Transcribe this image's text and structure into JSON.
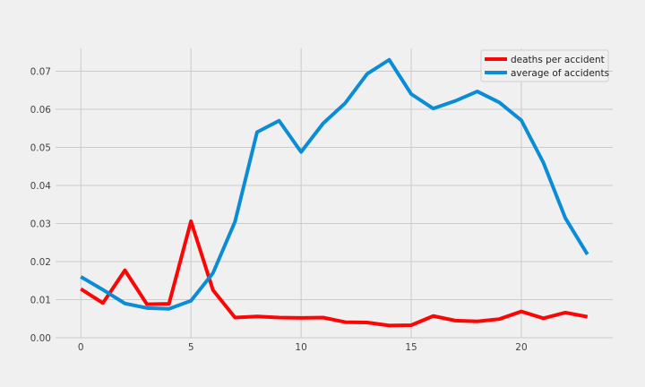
{
  "chart_data": {
    "type": "line",
    "title": "",
    "xlabel": "",
    "ylabel": "",
    "x": [
      0,
      1,
      2,
      3,
      4,
      5,
      6,
      7,
      8,
      9,
      10,
      11,
      12,
      13,
      14,
      15,
      16,
      17,
      18,
      19,
      20,
      21,
      22,
      23
    ],
    "xlim": [
      -1.15,
      24.15
    ],
    "ylim": [
      0.0,
      0.076
    ],
    "xticks": [
      0,
      5,
      10,
      15,
      20
    ],
    "xtick_labels": [
      "0",
      "5",
      "10",
      "15",
      "20"
    ],
    "yticks": [
      0.0,
      0.01,
      0.02,
      0.03,
      0.04,
      0.05,
      0.06,
      0.07
    ],
    "ytick_labels": [
      "0.00",
      "0.01",
      "0.02",
      "0.03",
      "0.04",
      "0.05",
      "0.06",
      "0.07"
    ],
    "grid": true,
    "legend_position": "top-right",
    "series": [
      {
        "name": "deaths per accident",
        "color": "#fc0505",
        "values": [
          0.0128,
          0.0091,
          0.0177,
          0.0088,
          0.0089,
          0.0306,
          0.0125,
          0.0053,
          0.0056,
          0.0053,
          0.0052,
          0.0053,
          0.0041,
          0.004,
          0.0032,
          0.0033,
          0.0057,
          0.0045,
          0.0043,
          0.0049,
          0.0069,
          0.0051,
          0.0066,
          0.0055
        ]
      },
      {
        "name": "average of accidents",
        "color": "#0a8cd6",
        "values": [
          0.016,
          0.0126,
          0.009,
          0.0078,
          0.0076,
          0.0097,
          0.017,
          0.0305,
          0.054,
          0.057,
          0.0488,
          0.0563,
          0.0616,
          0.0693,
          0.073,
          0.064,
          0.0602,
          0.0622,
          0.0647,
          0.0618,
          0.0571,
          0.046,
          0.0314,
          0.0219
        ]
      }
    ]
  }
}
